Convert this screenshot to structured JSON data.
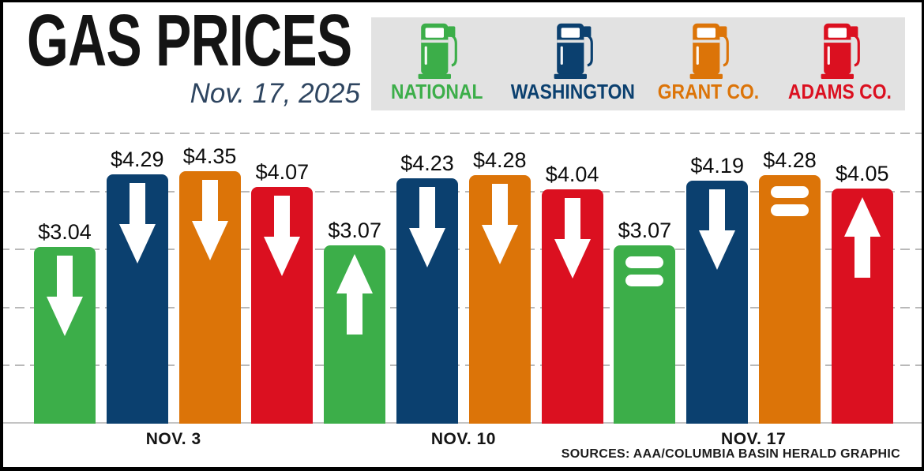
{
  "header": {
    "title": "GAS PRICES",
    "date": "Nov. 17, 2025"
  },
  "legend": {
    "items": [
      {
        "label": "NATIONAL",
        "color": "#3cae49",
        "icon": "gas-pump-icon"
      },
      {
        "label": "WASHINGTON",
        "color": "#0b406f",
        "icon": "gas-pump-icon"
      },
      {
        "label": "GRANT CO.",
        "color": "#dc7408",
        "icon": "gas-pump-icon"
      },
      {
        "label": "ADAMS CO.",
        "color": "#db1020",
        "icon": "gas-pump-icon"
      }
    ]
  },
  "chart_data": {
    "type": "bar",
    "title": "GAS PRICES",
    "categories": [
      "NOV. 3",
      "NOV. 10",
      "NOV. 17"
    ],
    "series": [
      {
        "name": "National",
        "color": "#3cae49",
        "values": [
          3.04,
          3.07,
          3.07
        ],
        "trend": [
          "down",
          "up",
          "same"
        ]
      },
      {
        "name": "Washington",
        "color": "#0b406f",
        "values": [
          4.29,
          4.23,
          4.19
        ],
        "trend": [
          "down",
          "down",
          "down"
        ]
      },
      {
        "name": "Grant Co.",
        "color": "#dc7408",
        "values": [
          4.35,
          4.28,
          4.28
        ],
        "trend": [
          "down",
          "down",
          "same"
        ]
      },
      {
        "name": "Adams Co.",
        "color": "#db1020",
        "values": [
          4.07,
          4.04,
          4.05
        ],
        "trend": [
          "down",
          "down",
          "up"
        ]
      }
    ],
    "value_prefix": "$",
    "value_decimals": 2,
    "ylim": [
      0,
      5
    ],
    "gridline_values": [
      1,
      2,
      3,
      4,
      5
    ],
    "grid_style": "dashed-horizontal",
    "legend_position": "top-right",
    "trend_glyphs": {
      "down": "white down arrow",
      "up": "white up arrow",
      "same": "white equals sign"
    }
  },
  "footer": {
    "source": "SOURCES: AAA/COLUMBIA BASIN HERALD GRAPHIC"
  }
}
